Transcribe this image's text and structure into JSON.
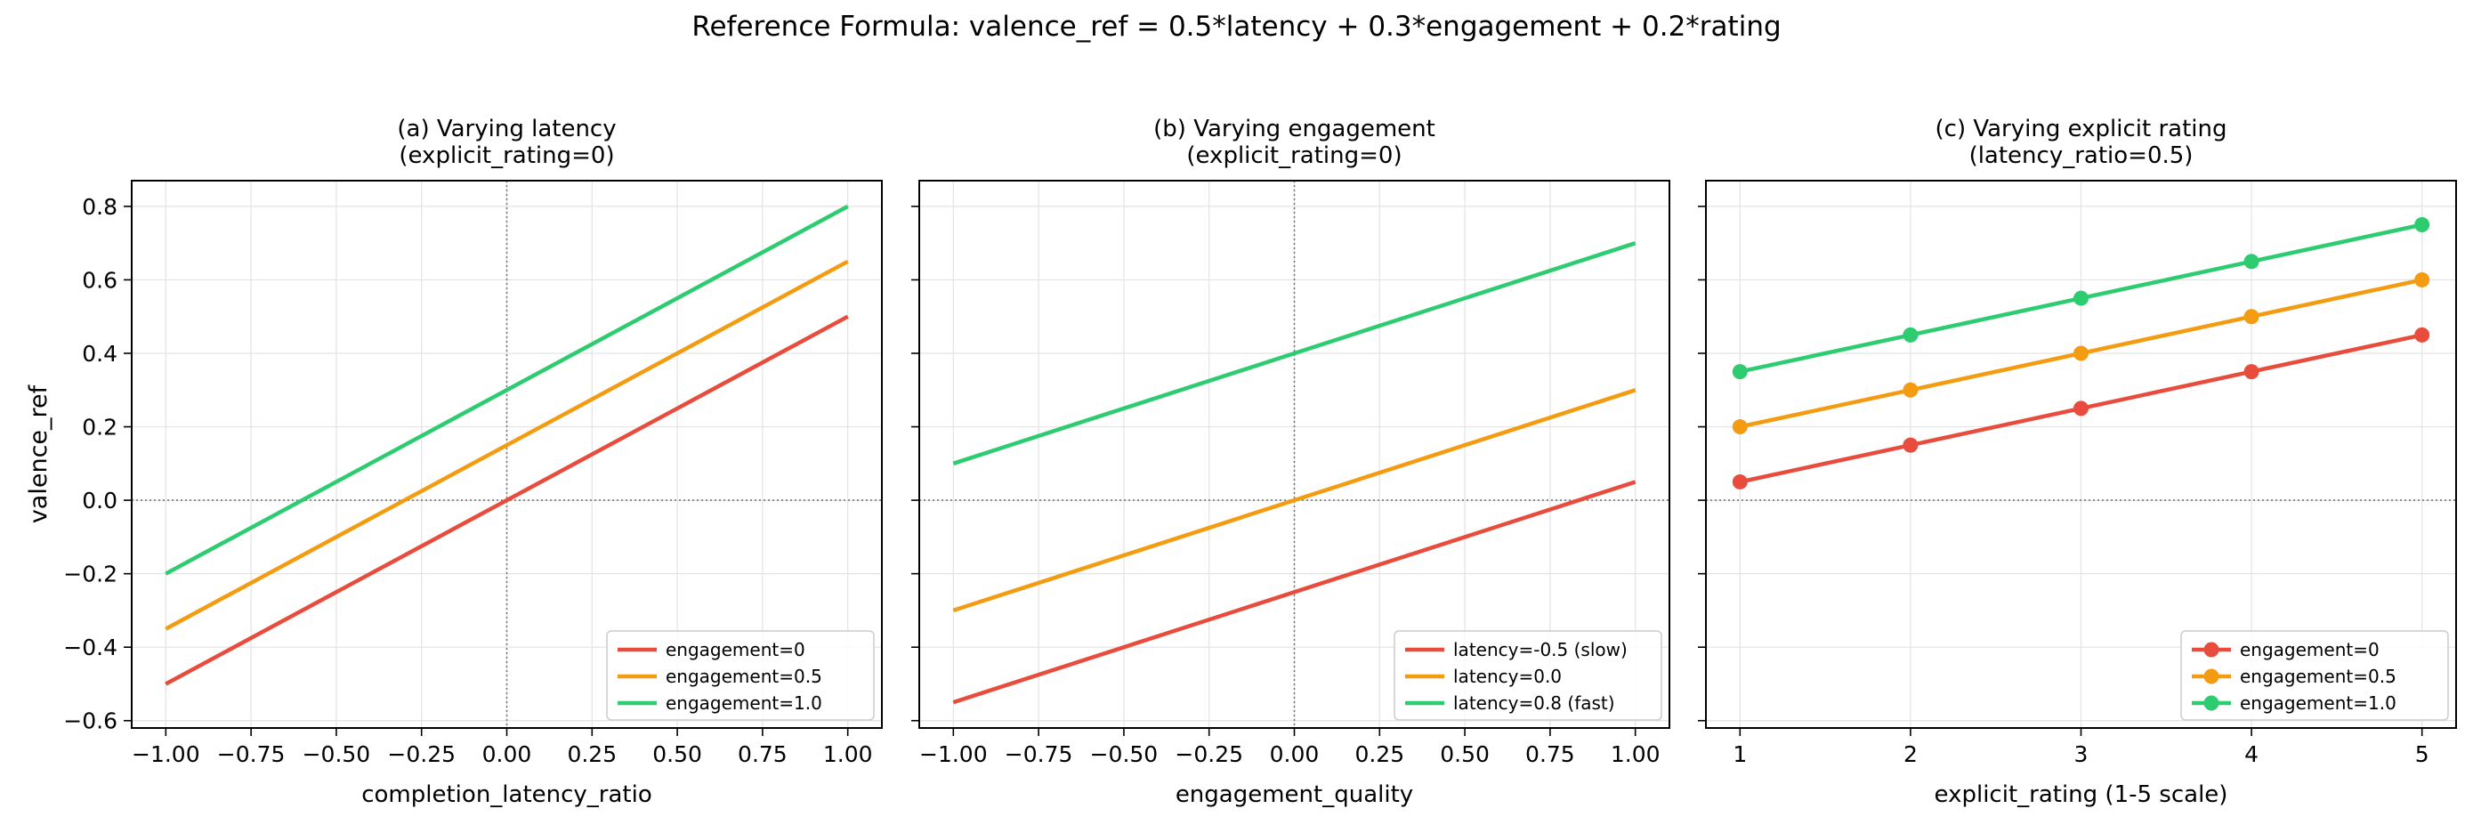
{
  "suptitle": "Reference Formula: valence_ref = 0.5*latency + 0.3*engagement + 0.2*rating",
  "colors": {
    "red": "#e74c3c",
    "orange": "#f39c12",
    "green": "#2ecc71"
  },
  "chart_data": [
    {
      "type": "line",
      "title": "(a) Varying latency\n(explicit_rating=0)",
      "xlabel": "completion_latency_ratio",
      "ylabel": "valence_ref",
      "xlim": [
        -1.1,
        1.1
      ],
      "ylim": [
        -0.62,
        0.87
      ],
      "xticks": [
        -1.0,
        -0.75,
        -0.5,
        -0.25,
        0.0,
        0.25,
        0.5,
        0.75,
        1.0
      ],
      "xtick_labels": [
        "−1.00",
        "−0.75",
        "−0.50",
        "−0.25",
        "0.00",
        "0.25",
        "0.50",
        "0.75",
        "1.00"
      ],
      "yticks": [
        -0.6,
        -0.4,
        -0.2,
        0.0,
        0.2,
        0.4,
        0.6,
        0.8
      ],
      "ytick_labels": [
        "−0.6",
        "−0.4",
        "−0.2",
        "0.0",
        "0.2",
        "0.4",
        "0.6",
        "0.8"
      ],
      "grid": true,
      "legend": "lower-right",
      "markers": false,
      "series": [
        {
          "name": "engagement=0",
          "color": "#e74c3c",
          "x": [
            -1.0,
            1.0
          ],
          "y": [
            -0.5,
            0.5
          ]
        },
        {
          "name": "engagement=0.5",
          "color": "#f39c12",
          "x": [
            -1.0,
            1.0
          ],
          "y": [
            -0.35,
            0.65
          ]
        },
        {
          "name": "engagement=1.0",
          "color": "#2ecc71",
          "x": [
            -1.0,
            1.0
          ],
          "y": [
            -0.2,
            0.8
          ]
        }
      ]
    },
    {
      "type": "line",
      "title": "(b) Varying engagement\n(explicit_rating=0)",
      "xlabel": "engagement_quality",
      "ylabel": "",
      "xlim": [
        -1.1,
        1.1
      ],
      "ylim": [
        -0.62,
        0.87
      ],
      "xticks": [
        -1.0,
        -0.75,
        -0.5,
        -0.25,
        0.0,
        0.25,
        0.5,
        0.75,
        1.0
      ],
      "xtick_labels": [
        "−1.00",
        "−0.75",
        "−0.50",
        "−0.25",
        "0.00",
        "0.25",
        "0.50",
        "0.75",
        "1.00"
      ],
      "yticks": [
        -0.6,
        -0.4,
        -0.2,
        0.0,
        0.2,
        0.4,
        0.6,
        0.8
      ],
      "ytick_labels": [],
      "grid": true,
      "legend": "lower-right",
      "markers": false,
      "series": [
        {
          "name": "latency=-0.5 (slow)",
          "color": "#e74c3c",
          "x": [
            -1.0,
            1.0
          ],
          "y": [
            -0.55,
            0.05
          ]
        },
        {
          "name": "latency=0.0",
          "color": "#f39c12",
          "x": [
            -1.0,
            1.0
          ],
          "y": [
            -0.3,
            0.3
          ]
        },
        {
          "name": "latency=0.8 (fast)",
          "color": "#2ecc71",
          "x": [
            -1.0,
            1.0
          ],
          "y": [
            0.1,
            0.7
          ]
        }
      ]
    },
    {
      "type": "line",
      "title": "(c) Varying explicit rating\n(latency_ratio=0.5)",
      "xlabel": "explicit_rating (1-5 scale)",
      "ylabel": "",
      "xlim": [
        0.8,
        5.2
      ],
      "ylim": [
        -0.62,
        0.87
      ],
      "xticks": [
        1,
        2,
        3,
        4,
        5
      ],
      "xtick_labels": [
        "1",
        "2",
        "3",
        "4",
        "5"
      ],
      "yticks": [
        -0.6,
        -0.4,
        -0.2,
        0.0,
        0.2,
        0.4,
        0.6,
        0.8
      ],
      "ytick_labels": [],
      "grid": true,
      "legend": "lower-right",
      "markers": true,
      "series": [
        {
          "name": "engagement=0",
          "color": "#e74c3c",
          "x": [
            1,
            2,
            3,
            4,
            5
          ],
          "y": [
            0.05,
            0.15,
            0.25,
            0.35,
            0.45
          ]
        },
        {
          "name": "engagement=0.5",
          "color": "#f39c12",
          "x": [
            1,
            2,
            3,
            4,
            5
          ],
          "y": [
            0.2,
            0.3,
            0.4,
            0.5,
            0.6
          ]
        },
        {
          "name": "engagement=1.0",
          "color": "#2ecc71",
          "x": [
            1,
            2,
            3,
            4,
            5
          ],
          "y": [
            0.35,
            0.45,
            0.55,
            0.65,
            0.75
          ]
        }
      ]
    }
  ]
}
